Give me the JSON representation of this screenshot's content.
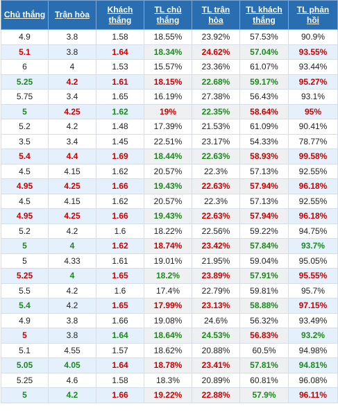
{
  "headers": [
    "Chủ thắng",
    "Trận hòa",
    "Khách thắng",
    "TL chủ thắng",
    "TL trận hòa",
    "TL khách thắng",
    "TL phản hồi"
  ],
  "rows": [
    {
      "hl": false,
      "cells": [
        [
          "4.9",
          ""
        ],
        [
          "3.8",
          ""
        ],
        [
          "1.58",
          ""
        ],
        [
          "18.55%",
          ""
        ],
        [
          "23.92%",
          ""
        ],
        [
          "57.53%",
          ""
        ],
        [
          "90.9%",
          ""
        ]
      ]
    },
    {
      "hl": true,
      "cells": [
        [
          "5.1",
          "red"
        ],
        [
          "3.8",
          ""
        ],
        [
          "1.64",
          "red"
        ],
        [
          "18.34%",
          "green"
        ],
        [
          "24.62%",
          "red"
        ],
        [
          "57.04%",
          "green"
        ],
        [
          "93.55%",
          "red"
        ]
      ]
    },
    {
      "hl": false,
      "cells": [
        [
          "6",
          ""
        ],
        [
          "4",
          ""
        ],
        [
          "1.53",
          ""
        ],
        [
          "15.57%",
          ""
        ],
        [
          "23.36%",
          ""
        ],
        [
          "61.07%",
          ""
        ],
        [
          "93.44%",
          ""
        ]
      ]
    },
    {
      "hl": true,
      "cells": [
        [
          "5.25",
          "green"
        ],
        [
          "4.2",
          "red"
        ],
        [
          "1.61",
          "red"
        ],
        [
          "18.15%",
          "red"
        ],
        [
          "22.68%",
          "green"
        ],
        [
          "59.17%",
          "green"
        ],
        [
          "95.27%",
          "red"
        ]
      ]
    },
    {
      "hl": false,
      "cells": [
        [
          "5.75",
          ""
        ],
        [
          "3.4",
          ""
        ],
        [
          "1.65",
          ""
        ],
        [
          "16.19%",
          ""
        ],
        [
          "27.38%",
          ""
        ],
        [
          "56.43%",
          ""
        ],
        [
          "93.1%",
          ""
        ]
      ]
    },
    {
      "hl": true,
      "cells": [
        [
          "5",
          "green"
        ],
        [
          "4.25",
          "red"
        ],
        [
          "1.62",
          "green"
        ],
        [
          "19%",
          "red"
        ],
        [
          "22.35%",
          "green"
        ],
        [
          "58.64%",
          "red"
        ],
        [
          "95%",
          "red"
        ]
      ]
    },
    {
      "hl": false,
      "cells": [
        [
          "5.2",
          ""
        ],
        [
          "4.2",
          ""
        ],
        [
          "1.48",
          ""
        ],
        [
          "17.39%",
          ""
        ],
        [
          "21.53%",
          ""
        ],
        [
          "61.09%",
          ""
        ],
        [
          "90.41%",
          ""
        ]
      ]
    },
    {
      "hl": false,
      "cells": [
        [
          "3.5",
          ""
        ],
        [
          "3.4",
          ""
        ],
        [
          "1.45",
          ""
        ],
        [
          "22.51%",
          ""
        ],
        [
          "23.17%",
          ""
        ],
        [
          "54.33%",
          ""
        ],
        [
          "78.77%",
          ""
        ]
      ]
    },
    {
      "hl": true,
      "cells": [
        [
          "5.4",
          "red"
        ],
        [
          "4.4",
          "red"
        ],
        [
          "1.69",
          "red"
        ],
        [
          "18.44%",
          "green"
        ],
        [
          "22.63%",
          "green"
        ],
        [
          "58.93%",
          "red"
        ],
        [
          "99.58%",
          "red"
        ]
      ]
    },
    {
      "hl": false,
      "cells": [
        [
          "4.5",
          ""
        ],
        [
          "4.15",
          ""
        ],
        [
          "1.62",
          ""
        ],
        [
          "20.57%",
          ""
        ],
        [
          "22.3%",
          ""
        ],
        [
          "57.13%",
          ""
        ],
        [
          "92.55%",
          ""
        ]
      ]
    },
    {
      "hl": true,
      "cells": [
        [
          "4.95",
          "red"
        ],
        [
          "4.25",
          "red"
        ],
        [
          "1.66",
          "red"
        ],
        [
          "19.43%",
          "green"
        ],
        [
          "22.63%",
          "red"
        ],
        [
          "57.94%",
          "red"
        ],
        [
          "96.18%",
          "red"
        ]
      ]
    },
    {
      "hl": false,
      "cells": [
        [
          "4.5",
          ""
        ],
        [
          "4.15",
          ""
        ],
        [
          "1.62",
          ""
        ],
        [
          "20.57%",
          ""
        ],
        [
          "22.3%",
          ""
        ],
        [
          "57.13%",
          ""
        ],
        [
          "92.55%",
          ""
        ]
      ]
    },
    {
      "hl": true,
      "cells": [
        [
          "4.95",
          "red"
        ],
        [
          "4.25",
          "red"
        ],
        [
          "1.66",
          "red"
        ],
        [
          "19.43%",
          "green"
        ],
        [
          "22.63%",
          "red"
        ],
        [
          "57.94%",
          "red"
        ],
        [
          "96.18%",
          "red"
        ]
      ]
    },
    {
      "hl": false,
      "cells": [
        [
          "5.2",
          ""
        ],
        [
          "4.2",
          ""
        ],
        [
          "1.6",
          ""
        ],
        [
          "18.22%",
          ""
        ],
        [
          "22.56%",
          ""
        ],
        [
          "59.22%",
          ""
        ],
        [
          "94.75%",
          ""
        ]
      ]
    },
    {
      "hl": true,
      "cells": [
        [
          "5",
          "green"
        ],
        [
          "4",
          "green"
        ],
        [
          "1.62",
          "red"
        ],
        [
          "18.74%",
          "red"
        ],
        [
          "23.42%",
          "red"
        ],
        [
          "57.84%",
          "green"
        ],
        [
          "93.7%",
          "green"
        ]
      ]
    },
    {
      "hl": false,
      "cells": [
        [
          "5",
          ""
        ],
        [
          "4.33",
          ""
        ],
        [
          "1.61",
          ""
        ],
        [
          "19.01%",
          ""
        ],
        [
          "21.95%",
          ""
        ],
        [
          "59.04%",
          ""
        ],
        [
          "95.05%",
          ""
        ]
      ]
    },
    {
      "hl": true,
      "cells": [
        [
          "5.25",
          "red"
        ],
        [
          "4",
          "green"
        ],
        [
          "1.65",
          "red"
        ],
        [
          "18.2%",
          "green"
        ],
        [
          "23.89%",
          "red"
        ],
        [
          "57.91%",
          "green"
        ],
        [
          "95.55%",
          "red"
        ]
      ]
    },
    {
      "hl": false,
      "cells": [
        [
          "5.5",
          ""
        ],
        [
          "4.2",
          ""
        ],
        [
          "1.6",
          ""
        ],
        [
          "17.4%",
          ""
        ],
        [
          "22.79%",
          ""
        ],
        [
          "59.81%",
          ""
        ],
        [
          "95.7%",
          ""
        ]
      ]
    },
    {
      "hl": true,
      "cells": [
        [
          "5.4",
          "green"
        ],
        [
          "4.2",
          ""
        ],
        [
          "1.65",
          "red"
        ],
        [
          "17.99%",
          "red"
        ],
        [
          "23.13%",
          "red"
        ],
        [
          "58.88%",
          "green"
        ],
        [
          "97.15%",
          "red"
        ]
      ]
    },
    {
      "hl": false,
      "cells": [
        [
          "4.9",
          ""
        ],
        [
          "3.8",
          ""
        ],
        [
          "1.66",
          ""
        ],
        [
          "19.08%",
          ""
        ],
        [
          "24.6%",
          ""
        ],
        [
          "56.32%",
          ""
        ],
        [
          "93.49%",
          ""
        ]
      ]
    },
    {
      "hl": true,
      "cells": [
        [
          "5",
          "red"
        ],
        [
          "3.8",
          ""
        ],
        [
          "1.64",
          "green"
        ],
        [
          "18.64%",
          "green"
        ],
        [
          "24.53%",
          "green"
        ],
        [
          "56.83%",
          "red"
        ],
        [
          "93.2%",
          "green"
        ]
      ]
    },
    {
      "hl": false,
      "cells": [
        [
          "5.1",
          ""
        ],
        [
          "4.55",
          ""
        ],
        [
          "1.57",
          ""
        ],
        [
          "18.62%",
          ""
        ],
        [
          "20.88%",
          ""
        ],
        [
          "60.5%",
          ""
        ],
        [
          "94.98%",
          ""
        ]
      ]
    },
    {
      "hl": true,
      "cells": [
        [
          "5.05",
          "green"
        ],
        [
          "4.05",
          "green"
        ],
        [
          "1.64",
          "red"
        ],
        [
          "18.78%",
          "red"
        ],
        [
          "23.41%",
          "red"
        ],
        [
          "57.81%",
          "green"
        ],
        [
          "94.81%",
          "green"
        ]
      ]
    },
    {
      "hl": false,
      "cells": [
        [
          "5.25",
          ""
        ],
        [
          "4.6",
          ""
        ],
        [
          "1.58",
          ""
        ],
        [
          "18.3%",
          ""
        ],
        [
          "20.89%",
          ""
        ],
        [
          "60.81%",
          ""
        ],
        [
          "96.08%",
          ""
        ]
      ]
    },
    {
      "hl": true,
      "cells": [
        [
          "5",
          "green"
        ],
        [
          "4.2",
          "green"
        ],
        [
          "1.66",
          "red"
        ],
        [
          "19.22%",
          "red"
        ],
        [
          "22.88%",
          "red"
        ],
        [
          "57.9%",
          "green"
        ],
        [
          "96.11%",
          "red"
        ]
      ]
    }
  ],
  "colors": {
    "header_bg": "#2a6eb2",
    "red": "#cc0000",
    "green": "#1b8a1b",
    "highlight_row": "#e4f0fb"
  }
}
